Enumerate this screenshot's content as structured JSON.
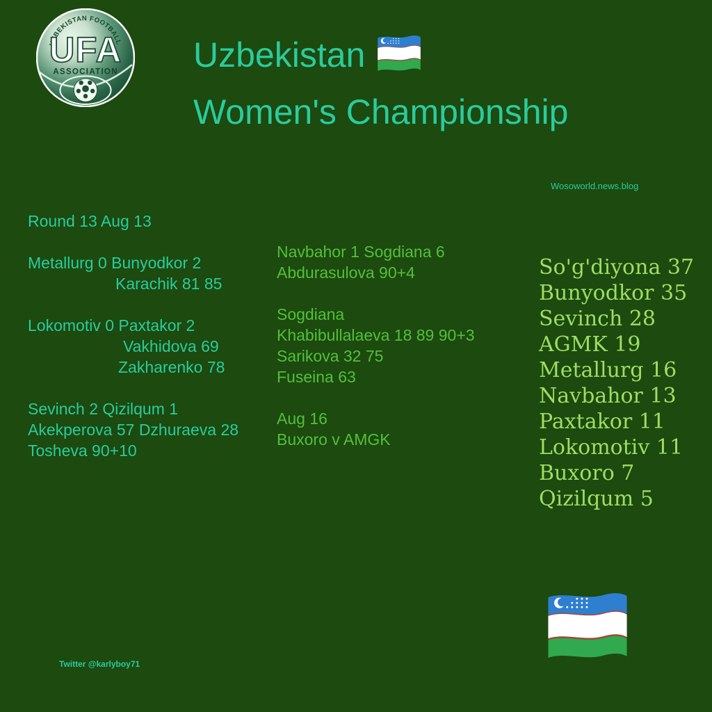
{
  "colors": {
    "background": "#1c4a0f",
    "teal": "#2bcb9e",
    "green": "#53c03a",
    "standings_green": "#9fdd62",
    "flag_blue": "#2f7fd0",
    "flag_white": "#ffffff",
    "flag_green": "#31a94e",
    "flag_red": "#a8463f"
  },
  "logo": {
    "top_text": "UZBEKISTAN FOOTBALL",
    "acronym": "UFA",
    "bottom_text": "ASSOCIATION"
  },
  "header": {
    "title_line1": "Uzbekistan",
    "title_line2": "Women's Championship",
    "flag_icon": "uzbekistan-flag"
  },
  "watermark": {
    "site": "Wosoworld.news.blog",
    "twitter": "Twitter @karlyboy71"
  },
  "results": {
    "left_lines": [
      {
        "text": "Round 13 Aug 13"
      },
      {
        "text": ""
      },
      {
        "text": "Metallurg 0 Bunyodkor 2"
      },
      {
        "text": "Karachik 81 85",
        "indent": 126
      },
      {
        "text": ""
      },
      {
        "text": "Lokomotiv 0 Paxtakor 2"
      },
      {
        "text": "Vakhidova 69",
        "indent": 137
      },
      {
        "text": "Zakharenko 78",
        "indent": 130
      },
      {
        "text": ""
      },
      {
        "text": "Sevinch 2 Qizilqum 1"
      },
      {
        "text": "Akekperova 57 Dzhuraeva 28"
      },
      {
        "text": "Tosheva 90+10"
      }
    ],
    "middle_lines": [
      {
        "text": "Navbahor 1 Sogdiana 6"
      },
      {
        "text": "Abdurasulova 90+4"
      },
      {
        "text": ""
      },
      {
        "text": "Sogdiana"
      },
      {
        "text": "Khabibullalaeva 18 89 90+3"
      },
      {
        "text": "Sarikova 32 75"
      },
      {
        "text": "Fuseina 63"
      },
      {
        "text": ""
      },
      {
        "text": "Aug 16"
      },
      {
        "text": "Buxoro v AMGK"
      }
    ]
  },
  "standings": {
    "rows": [
      {
        "team": "So'g'diyona",
        "points": 37
      },
      {
        "team": "Bunyodkor",
        "points": 35
      },
      {
        "team": "Sevinch",
        "points": 28
      },
      {
        "team": "AGMK",
        "points": 19
      },
      {
        "team": "Metallurg",
        "points": 16
      },
      {
        "team": "Navbahor",
        "points": 13
      },
      {
        "team": "Paxtakor",
        "points": 11
      },
      {
        "team": "Lokomotiv",
        "points": 11
      },
      {
        "team": "Buxoro",
        "points": 7
      },
      {
        "team": "Qizilqum",
        "points": 5
      }
    ]
  }
}
